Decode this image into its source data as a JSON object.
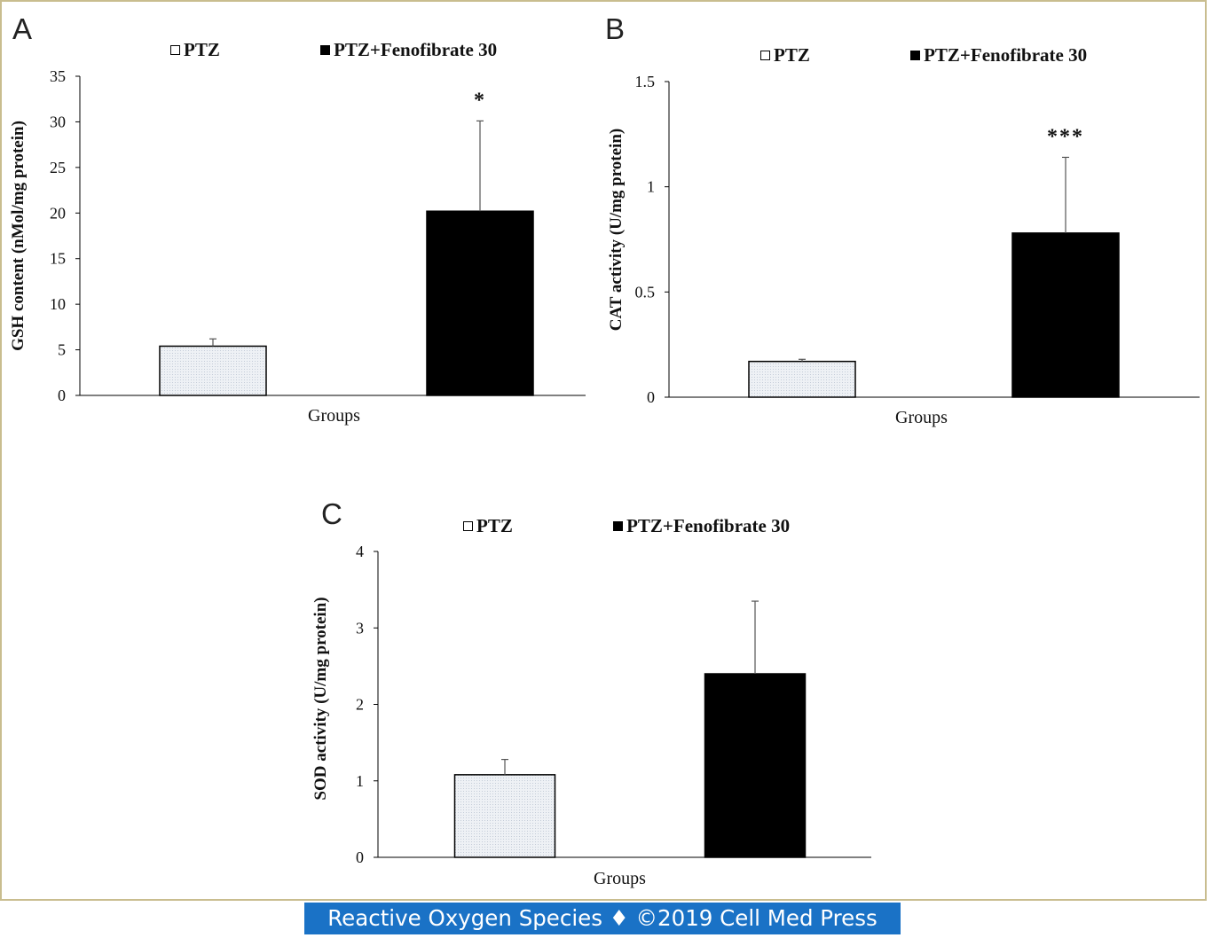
{
  "caption": "Reactive Oxygen Species ♦ ©2019 Cell Med Press",
  "colors": {
    "frame": "#c9bd8f",
    "caption_bg": "#1a72c6",
    "ptz_fill": "#eef1f5",
    "fenofibrate_fill": "#000000"
  },
  "legend": {
    "ptz": "PTZ",
    "fenofibrate": "PTZ+Fenofibrate 30"
  },
  "chart_data": [
    {
      "panel": "A",
      "type": "bar",
      "ylabel": "GSH content (nMol/mg protein)",
      "xlabel": "Groups",
      "ylim": [
        0,
        35
      ],
      "yticks": [
        "0",
        "5",
        "10",
        "15",
        "20",
        "25",
        "30",
        "35"
      ],
      "categories": [
        "PTZ",
        "PTZ+Fenofibrate 30"
      ],
      "values": [
        5.4,
        20.2
      ],
      "errors": [
        0.8,
        9.9
      ],
      "significance": [
        "",
        "*"
      ],
      "grid": false,
      "legend_position": "top"
    },
    {
      "panel": "B",
      "type": "bar",
      "ylabel": "CAT activity (U/mg protein)",
      "xlabel": "Groups",
      "ylim": [
        0,
        1.5
      ],
      "yticks": [
        "0",
        "0.5",
        "1",
        "1.5"
      ],
      "categories": [
        "PTZ",
        "PTZ+Fenofibrate 30"
      ],
      "values": [
        0.17,
        0.78
      ],
      "errors": [
        0.01,
        0.36
      ],
      "significance": [
        "",
        "***"
      ],
      "grid": false,
      "legend_position": "top"
    },
    {
      "panel": "C",
      "type": "bar",
      "ylabel": "SOD activity (U/mg protein)",
      "xlabel": "Groups",
      "ylim": [
        0,
        4
      ],
      "yticks": [
        "0",
        "1",
        "2",
        "3",
        "4"
      ],
      "categories": [
        "PTZ",
        "PTZ+Fenofibrate 30"
      ],
      "values": [
        1.08,
        2.4
      ],
      "errors": [
        0.2,
        0.95
      ],
      "significance": [
        "",
        ""
      ],
      "grid": false,
      "legend_position": "top"
    }
  ]
}
